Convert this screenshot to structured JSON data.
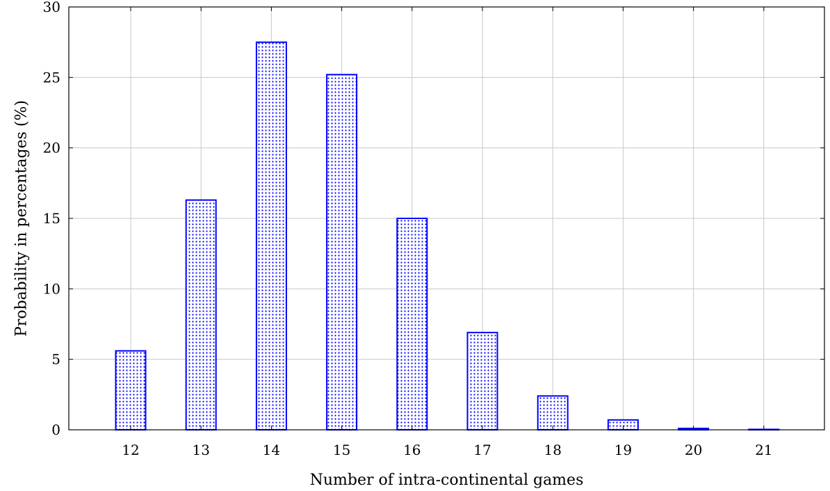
{
  "chart_data": {
    "type": "bar",
    "title": "",
    "xlabel": "Number of intra-continental games",
    "ylabel": "Probability in percentages (%)",
    "categories": [
      "12",
      "13",
      "14",
      "15",
      "16",
      "17",
      "18",
      "19",
      "20",
      "21"
    ],
    "values": [
      5.6,
      16.3,
      27.5,
      25.2,
      15.0,
      6.9,
      2.4,
      0.7,
      0.1,
      0.03
    ],
    "ylim": [
      0,
      30
    ],
    "yticks": [
      "0",
      "5",
      "10",
      "15",
      "20",
      "25",
      "30"
    ],
    "grid": true,
    "bar_style": "dotted-fill",
    "colors": {
      "bar_stroke": "#0000ff",
      "bar_pattern": "#0000ff",
      "grid": "#c8c8c8",
      "axis": "#000000"
    }
  }
}
